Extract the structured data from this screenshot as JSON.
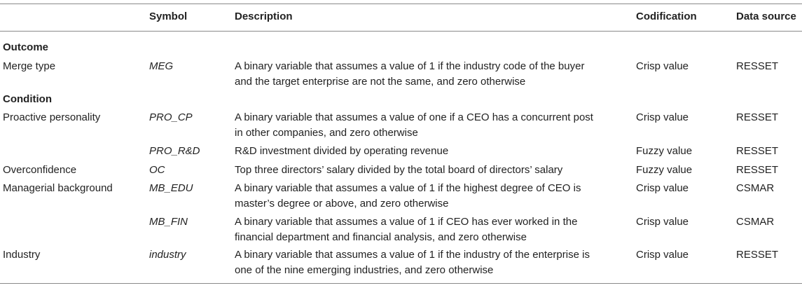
{
  "header": {
    "variable": "",
    "symbol": "Symbol",
    "description": "Description",
    "codification": "Codification",
    "data_source": "Data source"
  },
  "sections": {
    "outcome": "Outcome",
    "condition": "Condition"
  },
  "rows": [
    {
      "variable": "Merge type",
      "symbol": "MEG",
      "description_lines": [
        "A binary variable that assumes a value of 1 if the industry code of the buyer",
        "and the target enterprise are not the same, and zero otherwise"
      ],
      "codification": "Crisp value",
      "data_source": "RESSET"
    },
    {
      "variable": "Proactive personality",
      "symbol": "PRO_CP",
      "description_lines": [
        "A binary variable that assumes a value of one if a CEO has a concurrent post",
        "in other companies, and zero otherwise"
      ],
      "codification": "Crisp value",
      "data_source": "RESSET"
    },
    {
      "variable": "",
      "symbol": "PRO_R&D",
      "description_lines": [
        "R&D investment divided by operating revenue"
      ],
      "codification": "Fuzzy value",
      "data_source": "RESSET"
    },
    {
      "variable": "Overconfidence",
      "symbol": "OC",
      "description_lines": [
        "Top three directors’ salary divided by the total board of directors’ salary"
      ],
      "codification": "Fuzzy value",
      "data_source": "RESSET"
    },
    {
      "variable": "Managerial background",
      "symbol": "MB_EDU",
      "description_lines": [
        "A binary variable that assumes a value of 1 if the highest degree of CEO is",
        "master’s degree or above, and zero otherwise"
      ],
      "codification": "Crisp value",
      "data_source": "CSMAR"
    },
    {
      "variable": "",
      "symbol": "MB_FIN",
      "description_lines": [
        "A binary variable that assumes a value of 1 if CEO has ever worked in the",
        "financial department and financial analysis, and zero otherwise"
      ],
      "codification": "Crisp value",
      "data_source": "CSMAR"
    },
    {
      "variable": "Industry",
      "symbol": "industry",
      "description_lines": [
        "A binary variable that assumes a value of 1 if the industry of the enterprise is",
        "one of the nine emerging industries, and zero otherwise"
      ],
      "codification": "Crisp value",
      "data_source": "RESSET"
    }
  ]
}
